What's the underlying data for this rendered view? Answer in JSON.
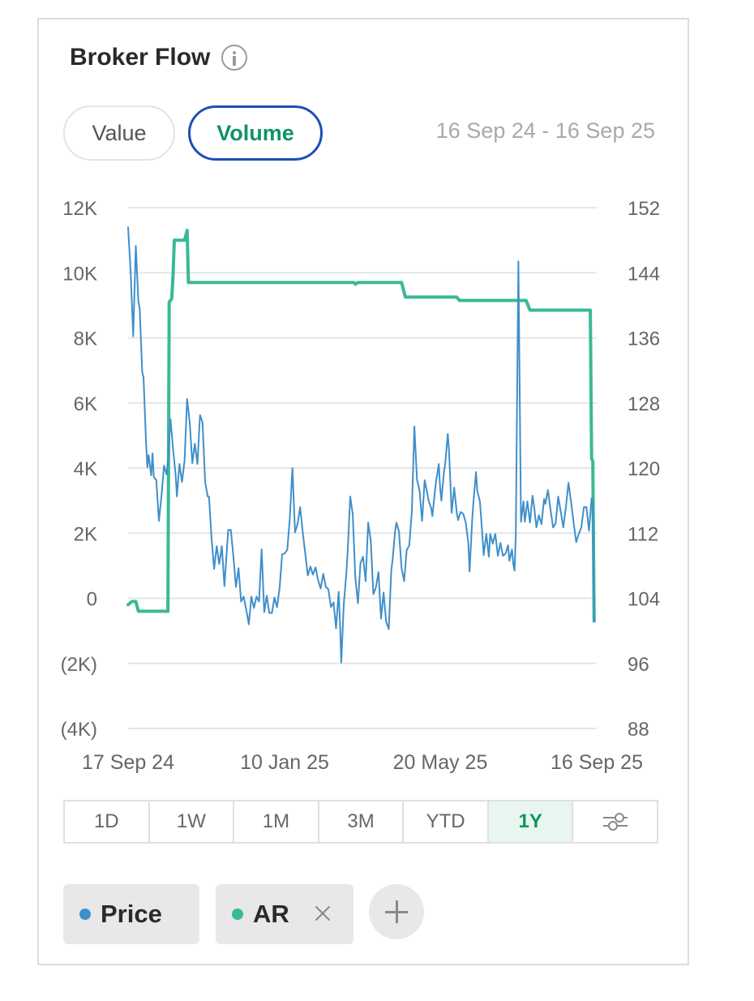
{
  "header": {
    "title": "Broker Flow"
  },
  "toggle": {
    "value_label": "Value",
    "volume_label": "Volume",
    "selected": "Volume"
  },
  "date_range": "16 Sep 24 - 16 Sep 25",
  "timeframes": [
    "1D",
    "1W",
    "1M",
    "3M",
    "YTD",
    "1Y"
  ],
  "selected_timeframe": "1Y",
  "legend": {
    "price_label": "Price",
    "ar_label": "AR"
  },
  "colors": {
    "price": "#3f8fcb",
    "ar": "#3bb897",
    "accent_green": "#109463",
    "accent_blue": "#1f4fb5"
  },
  "icons": {
    "info": "info-icon",
    "settings": "sliders-icon",
    "remove": "close-icon",
    "add": "plus-icon"
  },
  "chart_data": {
    "type": "line",
    "title": "",
    "y_left": {
      "label": "",
      "ticks": [
        "12K",
        "10K",
        "8K",
        "6K",
        "4K",
        "2K",
        "0",
        "(2K)",
        "(4K)"
      ],
      "range": [
        -4000,
        12000
      ]
    },
    "y_right": {
      "label": "",
      "ticks": [
        "152",
        "144",
        "136",
        "128",
        "120",
        "112",
        "104",
        "96",
        "88"
      ],
      "range": [
        88,
        152
      ]
    },
    "x_ticks": [
      "17 Sep 24",
      "10 Jan 25",
      "20 May 25",
      "16 Sep 25"
    ],
    "x_range": [
      0,
      365
    ],
    "grid": true,
    "series": [
      {
        "name": "AR",
        "axis": "left",
        "points": [
          [
            0,
            -200
          ],
          [
            3,
            -100
          ],
          [
            6,
            -100
          ],
          [
            8,
            -400
          ],
          [
            31,
            -400
          ],
          [
            32,
            9100
          ],
          [
            34,
            9200
          ],
          [
            35,
            9900
          ],
          [
            36,
            11000
          ],
          [
            44,
            11000
          ],
          [
            46,
            11300
          ],
          [
            47,
            9700
          ],
          [
            176,
            9700
          ],
          [
            177,
            9650
          ],
          [
            179,
            9700
          ],
          [
            213,
            9700
          ],
          [
            216,
            9250
          ],
          [
            256,
            9250
          ],
          [
            258,
            9150
          ],
          [
            310,
            9150
          ],
          [
            313,
            8850
          ],
          [
            360,
            8850
          ],
          [
            361,
            4300
          ],
          [
            362,
            4200
          ],
          [
            363,
            -700
          ]
        ]
      },
      {
        "name": "Price",
        "axis": "right",
        "points": [
          [
            0,
            149.6
          ],
          [
            2,
            144
          ],
          [
            4,
            136.2
          ],
          [
            6,
            147.3
          ],
          [
            8,
            140.5
          ],
          [
            9,
            139.6
          ],
          [
            11,
            131.8
          ],
          [
            12,
            131.2
          ],
          [
            14,
            123
          ],
          [
            15,
            120.1
          ],
          [
            16,
            121.6
          ],
          [
            18,
            119.1
          ],
          [
            19,
            121.8
          ],
          [
            20,
            118.9
          ],
          [
            22,
            118.5
          ],
          [
            24,
            113.5
          ],
          [
            26,
            116.6
          ],
          [
            28,
            120.3
          ],
          [
            30,
            119.2
          ],
          [
            31,
            121
          ],
          [
            33,
            126
          ],
          [
            35,
            122.4
          ],
          [
            37,
            119.2
          ],
          [
            38,
            116.5
          ],
          [
            40,
            120.5
          ],
          [
            42,
            118.3
          ],
          [
            44,
            121
          ],
          [
            46,
            128.5
          ],
          [
            48,
            125.6
          ],
          [
            50,
            120.6
          ],
          [
            52,
            123
          ],
          [
            54,
            120.5
          ],
          [
            56,
            126.5
          ],
          [
            58,
            125.6
          ],
          [
            60,
            118.3
          ],
          [
            62,
            116.5
          ],
          [
            63,
            116.5
          ],
          [
            65,
            111.4
          ],
          [
            67,
            107.6
          ],
          [
            69,
            110.4
          ],
          [
            71,
            108.2
          ],
          [
            73,
            110.4
          ],
          [
            75,
            105.5
          ],
          [
            78,
            112.4
          ],
          [
            80,
            112.4
          ],
          [
            82,
            109.1
          ],
          [
            84,
            105.4
          ],
          [
            86,
            107.7
          ],
          [
            88,
            103.6
          ],
          [
            90,
            104.2
          ],
          [
            92,
            102.6
          ],
          [
            94,
            100.8
          ],
          [
            96,
            104.2
          ],
          [
            98,
            102.8
          ],
          [
            100,
            104.2
          ],
          [
            102,
            103.6
          ],
          [
            104,
            110
          ],
          [
            106,
            102.3
          ],
          [
            108,
            104.3
          ],
          [
            110,
            102.2
          ],
          [
            112,
            102.2
          ],
          [
            114,
            104.1
          ],
          [
            116,
            102.9
          ],
          [
            118,
            105.3
          ],
          [
            120,
            109.4
          ],
          [
            122,
            109.5
          ],
          [
            124,
            110
          ],
          [
            126,
            113.9
          ],
          [
            128,
            120
          ],
          [
            130,
            112.1
          ],
          [
            132,
            113.1
          ],
          [
            134,
            115.2
          ],
          [
            136,
            112.1
          ],
          [
            138,
            109.5
          ],
          [
            140,
            106.8
          ],
          [
            142,
            107.9
          ],
          [
            144,
            106.9
          ],
          [
            146,
            107.8
          ],
          [
            148,
            106.2
          ],
          [
            150,
            105.2
          ],
          [
            152,
            107
          ],
          [
            154,
            105.4
          ],
          [
            156,
            105.1
          ],
          [
            158,
            102.9
          ],
          [
            160,
            103.5
          ],
          [
            162,
            100.3
          ],
          [
            164,
            104.8
          ],
          [
            165,
            101.2
          ],
          [
            166,
            96.1
          ],
          [
            168,
            103.2
          ],
          [
            170,
            107.1
          ],
          [
            171,
            109.7
          ],
          [
            173,
            116.5
          ],
          [
            175,
            114.3
          ],
          [
            177,
            106.5
          ],
          [
            179,
            103.4
          ],
          [
            181,
            108.3
          ],
          [
            183,
            109.1
          ],
          [
            185,
            106.1
          ],
          [
            187,
            113.3
          ],
          [
            189,
            111.1
          ],
          [
            191,
            104.5
          ],
          [
            193,
            105.3
          ],
          [
            195,
            107.2
          ],
          [
            197,
            101.5
          ],
          [
            199,
            104.7
          ],
          [
            201,
            101.1
          ],
          [
            203,
            100.2
          ],
          [
            205,
            107.4
          ],
          [
            206,
            108.7
          ],
          [
            208,
            112.3
          ],
          [
            209,
            113.3
          ],
          [
            211,
            112.2
          ],
          [
            213,
            107.7
          ],
          [
            215,
            106.1
          ],
          [
            217,
            109.9
          ],
          [
            219,
            110.5
          ],
          [
            221,
            114.7
          ],
          [
            223,
            125.1
          ],
          [
            225,
            118.6
          ],
          [
            227,
            117.2
          ],
          [
            229,
            113.5
          ],
          [
            231,
            118.5
          ],
          [
            233,
            116.9
          ],
          [
            234,
            116
          ],
          [
            236,
            115.1
          ],
          [
            237,
            114.1
          ],
          [
            239,
            117.2
          ],
          [
            240,
            118.5
          ],
          [
            242,
            120.5
          ],
          [
            243,
            117.7
          ],
          [
            244,
            116
          ],
          [
            246,
            119.5
          ],
          [
            247,
            120.5
          ],
          [
            249,
            124.2
          ],
          [
            250,
            122
          ],
          [
            252,
            114.5
          ],
          [
            254,
            117.6
          ],
          [
            256,
            114.5
          ],
          [
            257,
            113.6
          ],
          [
            259,
            114.6
          ],
          [
            261,
            114.4
          ],
          [
            263,
            113.3
          ],
          [
            265,
            110.8
          ],
          [
            266,
            107.3
          ],
          [
            268,
            113.6
          ],
          [
            269,
            115.9
          ],
          [
            271,
            119.5
          ],
          [
            272,
            117.2
          ],
          [
            274,
            115.9
          ],
          [
            275,
            113.8
          ],
          [
            277,
            109.3
          ],
          [
            279,
            111.9
          ],
          [
            281,
            109.1
          ],
          [
            282,
            111.9
          ],
          [
            284,
            110.7
          ],
          [
            286,
            111.9
          ],
          [
            288,
            109.2
          ],
          [
            290,
            110.8
          ],
          [
            292,
            109.2
          ],
          [
            294,
            109.5
          ],
          [
            296,
            110.5
          ],
          [
            297,
            108.6
          ],
          [
            299,
            110
          ],
          [
            300,
            108.2
          ],
          [
            301,
            107.4
          ],
          [
            302,
            111.9
          ],
          [
            304,
            145.4
          ],
          [
            306,
            113.4
          ],
          [
            308,
            115.9
          ],
          [
            309,
            113.4
          ],
          [
            311,
            115.9
          ],
          [
            313,
            113.3
          ],
          [
            315,
            116.6
          ],
          [
            316,
            115.6
          ],
          [
            318,
            112.7
          ],
          [
            320,
            114.2
          ],
          [
            322,
            113.1
          ],
          [
            324,
            116.2
          ],
          [
            325,
            115.6
          ],
          [
            327,
            117.3
          ],
          [
            329,
            114.9
          ],
          [
            331,
            112.7
          ],
          [
            333,
            113.2
          ],
          [
            335,
            116.5
          ],
          [
            337,
            114.6
          ],
          [
            339,
            112.7
          ],
          [
            341,
            115.2
          ],
          [
            343,
            118.2
          ],
          [
            345,
            115.9
          ],
          [
            347,
            113.3
          ],
          [
            349,
            110.9
          ],
          [
            351,
            111.9
          ],
          [
            353,
            112.7
          ],
          [
            355,
            115.2
          ],
          [
            357,
            115.2
          ],
          [
            359,
            112.3
          ],
          [
            361,
            116.3
          ],
          [
            362,
            115.3
          ],
          [
            363,
            101.1
          ]
        ]
      }
    ]
  }
}
